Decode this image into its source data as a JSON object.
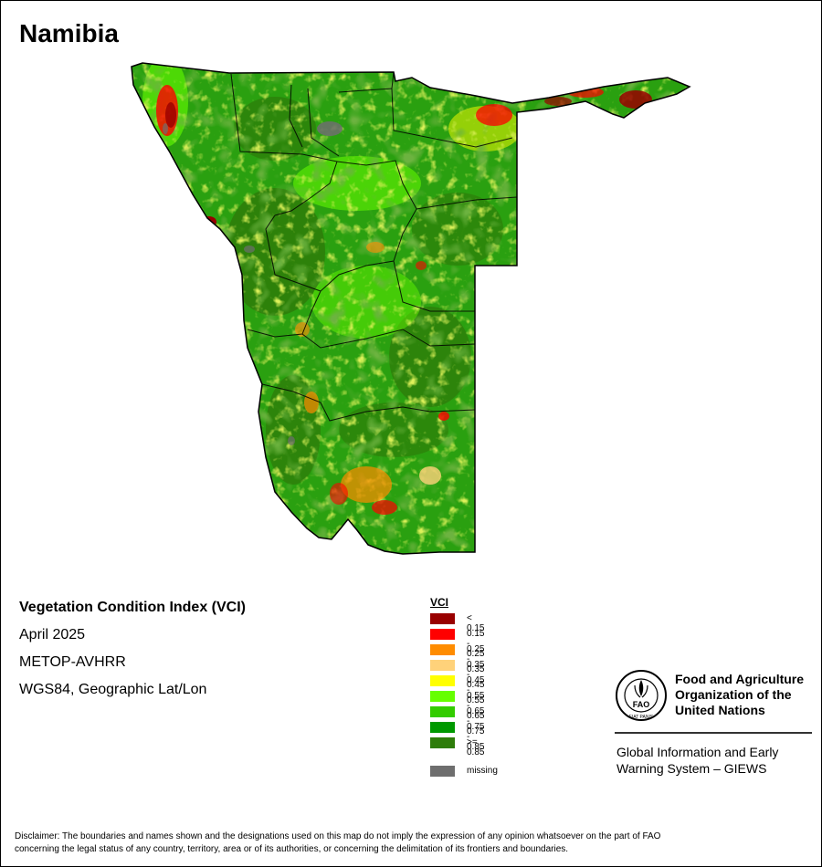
{
  "map": {
    "country": "Namibia"
  },
  "info": {
    "title": "Vegetation Condition Index (VCI)",
    "date": "April 2025",
    "sensor": "METOP-AVHRR",
    "projection": "WGS84, Geographic Lat/Lon"
  },
  "legend": {
    "heading": "VCI",
    "classes": [
      {
        "label": "< 0.15",
        "color": "#990000"
      },
      {
        "label": "0.15 - 0.25",
        "color": "#ff0000"
      },
      {
        "label": "0.25 - 0.35",
        "color": "#ff8c00"
      },
      {
        "label": "0.35 - 0.45",
        "color": "#ffd27a"
      },
      {
        "label": "0.45 - 0.55",
        "color": "#ffff00"
      },
      {
        "label": "0.55 - 0.65",
        "color": "#66ff00"
      },
      {
        "label": "0.65 - 0.75",
        "color": "#33cc00"
      },
      {
        "label": "0.75 - 0.85",
        "color": "#009900"
      },
      {
        "label": ">= 0.85",
        "color": "#2e7d0a"
      }
    ],
    "missing": {
      "label": "missing",
      "color": "#6e6e6e"
    }
  },
  "fao": {
    "name_line1": "Food and Agriculture",
    "name_line2": "Organization of the",
    "name_line3": "United Nations",
    "logo_text": "FIAT PANIS",
    "logo_letters": "FAO",
    "giews_line1": "Global Information and Early",
    "giews_line2": "Warning System – GIEWS"
  },
  "disclaimer": {
    "line1": "Disclaimer: The boundaries and names shown and the designations used on this map do not imply the expression of any opinion whatsoever on the part of FAO",
    "line2": "concerning the legal status of any country, territory, area or of its authorities, or concerning the delimitation of its frontiers and boundaries."
  }
}
